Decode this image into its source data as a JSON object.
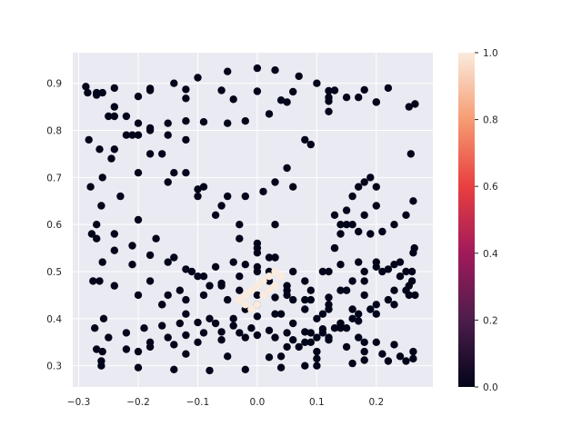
{
  "chart_data": {
    "type": "scatter",
    "title": "",
    "xlabel": "",
    "ylabel": "",
    "xlim": [
      -0.31,
      0.295
    ],
    "ylim": [
      0.255,
      0.965
    ],
    "xticks": [
      -0.3,
      -0.2,
      -0.1,
      0.0,
      0.1,
      0.2
    ],
    "xtick_labels": [
      "−0.3",
      "−0.2",
      "−0.1",
      "0.0",
      "0.1",
      "0.2"
    ],
    "yticks": [
      0.3,
      0.4,
      0.5,
      0.6,
      0.7,
      0.8,
      0.9
    ],
    "ytick_labels": [
      "0.3",
      "0.4",
      "0.5",
      "0.6",
      "0.7",
      "0.8",
      "0.9"
    ],
    "grid": true,
    "colorbar": {
      "range": [
        0.0,
        1.0
      ],
      "ticks": [
        0.0,
        0.2,
        0.4,
        0.6,
        0.8,
        1.0
      ],
      "tick_labels": [
        "0.0",
        "0.2",
        "0.4",
        "0.6",
        "0.8",
        "1.0"
      ],
      "colormap": "rocket",
      "colors": [
        "#03051a",
        "#4c1d4b",
        "#a11a5b",
        "#e83f3f",
        "#f69c73",
        "#faebdd"
      ]
    },
    "series": [
      {
        "color_value": 0.0,
        "x": [
          -0.288,
          -0.24,
          -0.18,
          -0.12,
          -0.06,
          0.0,
          0.06,
          0.12,
          0.18,
          0.22
        ],
        "y": [
          0.893,
          0.89,
          0.889,
          0.887,
          0.885,
          0.883,
          0.882,
          0.884,
          0.886,
          0.89
        ]
      },
      {
        "color_value": 0.0,
        "x": [
          -0.27,
          -0.2,
          -0.12,
          -0.04,
          0.04,
          0.12,
          0.2,
          0.265
        ],
        "y": [
          0.875,
          0.872,
          0.868,
          0.866,
          0.864,
          0.862,
          0.86,
          0.856
        ]
      },
      {
        "color_value": 0.0,
        "x": [
          -0.18,
          -0.14,
          -0.1,
          -0.05,
          0.0,
          0.03,
          0.07,
          0.1,
          0.13,
          0.17,
          0.2
        ],
        "y": [
          0.885,
          0.9,
          0.912,
          0.925,
          0.932,
          0.928,
          0.915,
          0.9,
          0.885,
          0.87,
          0.86
        ]
      },
      {
        "color_value": 0.0,
        "x": [
          -0.285,
          -0.283,
          -0.28,
          -0.278,
          -0.276,
          -0.273
        ],
        "y": [
          0.88,
          0.78,
          0.68,
          0.58,
          0.48,
          0.38
        ]
      },
      {
        "color_value": 0.0,
        "x": [
          -0.27,
          -0.265,
          -0.262,
          -0.26,
          -0.258,
          -0.262
        ],
        "y": [
          0.88,
          0.76,
          0.64,
          0.52,
          0.4,
          0.31
        ]
      },
      {
        "color_value": 0.0,
        "x": [
          -0.262,
          -0.2,
          -0.14,
          -0.08,
          -0.02,
          0.04,
          0.1,
          0.16,
          0.22,
          0.262
        ],
        "y": [
          0.3,
          0.296,
          0.292,
          0.29,
          0.292,
          0.296,
          0.3,
          0.305,
          0.31,
          0.315
        ]
      },
      {
        "color_value": 0.0,
        "x": [
          -0.27,
          -0.2,
          -0.12,
          -0.05,
          0.02,
          0.1,
          0.18,
          0.25
        ],
        "y": [
          0.335,
          0.33,
          0.325,
          0.32,
          0.318,
          0.315,
          0.312,
          0.31
        ]
      },
      {
        "color_value": 0.0,
        "x": [
          0.255,
          0.258,
          0.262,
          0.264,
          0.265,
          0.262
        ],
        "y": [
          0.85,
          0.75,
          0.65,
          0.55,
          0.45,
          0.33
        ]
      },
      {
        "color_value": 0.0,
        "x": [
          -0.26,
          -0.24,
          -0.22,
          -0.2,
          -0.18,
          -0.15,
          -0.12
        ],
        "y": [
          0.88,
          0.85,
          0.83,
          0.815,
          0.8,
          0.79,
          0.78
        ]
      },
      {
        "color_value": 0.0,
        "x": [
          -0.24,
          -0.21,
          -0.18,
          -0.15,
          -0.12,
          -0.09,
          -0.05,
          -0.02,
          0.02,
          0.05
        ],
        "y": [
          0.76,
          0.79,
          0.805,
          0.815,
          0.82,
          0.818,
          0.815,
          0.82,
          0.835,
          0.86
        ]
      },
      {
        "color_value": 0.0,
        "x": [
          -0.245,
          -0.2,
          -0.15,
          -0.1,
          -0.05,
          -0.02,
          0.01,
          0.03,
          0.05,
          0.08,
          0.12,
          0.15
        ],
        "y": [
          0.74,
          0.71,
          0.69,
          0.675,
          0.66,
          0.66,
          0.67,
          0.69,
          0.72,
          0.78,
          0.84,
          0.87
        ]
      },
      {
        "color_value": 0.0,
        "x": [
          -0.25,
          -0.22,
          -0.18,
          -0.14,
          -0.1,
          -0.07,
          -0.03,
          0.0,
          0.03,
          0.06,
          0.09,
          0.12
        ],
        "y": [
          0.83,
          0.79,
          0.75,
          0.71,
          0.66,
          0.62,
          0.57,
          0.54,
          0.6,
          0.68,
          0.77,
          0.87
        ]
      },
      {
        "color_value": 0.0,
        "x": [
          -0.24,
          -0.2,
          -0.16,
          -0.12,
          -0.09,
          -0.06,
          -0.03,
          0.0,
          0.02
        ],
        "y": [
          0.83,
          0.79,
          0.75,
          0.71,
          0.68,
          0.64,
          0.6,
          0.56,
          0.53
        ]
      },
      {
        "color_value": 0.0,
        "x": [
          -0.26,
          -0.23,
          -0.2,
          -0.17,
          -0.14,
          -0.11,
          -0.08,
          -0.05,
          -0.02
        ],
        "y": [
          0.7,
          0.66,
          0.61,
          0.57,
          0.53,
          0.5,
          0.47,
          0.44,
          0.42
        ]
      },
      {
        "color_value": 0.0,
        "x": [
          -0.27,
          -0.24,
          -0.21,
          -0.18,
          -0.15,
          -0.12,
          -0.09,
          -0.06,
          -0.03,
          0.0,
          0.03,
          0.06,
          0.09,
          0.12,
          0.15,
          0.18,
          0.21,
          0.24,
          0.262
        ],
        "y": [
          0.6,
          0.58,
          0.555,
          0.535,
          0.52,
          0.505,
          0.49,
          0.475,
          0.46,
          0.45,
          0.445,
          0.44,
          0.44,
          0.445,
          0.46,
          0.48,
          0.5,
          0.52,
          0.54
        ]
      },
      {
        "color_value": 0.0,
        "x": [
          -0.25,
          -0.22,
          -0.19,
          -0.16,
          -0.13,
          -0.1,
          -0.07,
          -0.04,
          -0.01,
          0.02,
          0.05,
          0.08,
          0.11,
          0.14,
          0.17,
          0.2,
          0.23,
          0.255
        ],
        "y": [
          0.36,
          0.37,
          0.38,
          0.385,
          0.39,
          0.392,
          0.39,
          0.385,
          0.38,
          0.375,
          0.37,
          0.372,
          0.378,
          0.385,
          0.395,
          0.41,
          0.43,
          0.45
        ]
      },
      {
        "color_value": 0.0,
        "x": [
          -0.27,
          -0.24,
          -0.21,
          -0.18,
          -0.15,
          -0.12,
          -0.09,
          -0.06,
          -0.03,
          0.0,
          0.03
        ],
        "y": [
          0.57,
          0.545,
          0.515,
          0.48,
          0.45,
          0.44,
          0.45,
          0.47,
          0.49,
          0.51,
          0.53
        ]
      },
      {
        "color_value": 0.0,
        "x": [
          -0.16,
          -0.13,
          -0.1,
          -0.07,
          -0.04,
          -0.02,
          0.0,
          0.02,
          0.05
        ],
        "y": [
          0.43,
          0.46,
          0.49,
          0.51,
          0.52,
          0.515,
          0.5,
          0.48,
          0.46
        ]
      },
      {
        "color_value": 0.0,
        "x": [
          -0.265,
          -0.24,
          -0.2,
          -0.16,
          -0.12,
          -0.08,
          -0.04,
          0.0,
          0.04,
          0.08
        ],
        "y": [
          0.48,
          0.47,
          0.45,
          0.43,
          0.41,
          0.4,
          0.4,
          0.405,
          0.41,
          0.42
        ]
      },
      {
        "color_value": 0.0,
        "x": [
          -0.26,
          -0.22,
          -0.18,
          -0.14,
          -0.1,
          -0.06,
          -0.02
        ],
        "y": [
          0.33,
          0.335,
          0.34,
          0.345,
          0.35,
          0.355,
          0.36
        ]
      },
      {
        "color_value": 0.0,
        "x": [
          0.05,
          0.08,
          0.11,
          0.14,
          0.17,
          0.2,
          0.23,
          0.25,
          0.26
        ],
        "y": [
          0.45,
          0.48,
          0.5,
          0.515,
          0.52,
          0.52,
          0.515,
          0.5,
          0.48
        ]
      },
      {
        "color_value": 0.0,
        "x": [
          0.1,
          0.12,
          0.14,
          0.16,
          0.18,
          0.2,
          0.22,
          0.24,
          0.255
        ],
        "y": [
          0.4,
          0.43,
          0.46,
          0.48,
          0.5,
          0.51,
          0.505,
          0.49,
          0.47
        ]
      },
      {
        "color_value": 0.0,
        "x": [
          0.04,
          0.07,
          0.1,
          0.13,
          0.16,
          0.19,
          0.22,
          0.25
        ],
        "y": [
          0.32,
          0.34,
          0.36,
          0.38,
          0.4,
          0.42,
          0.44,
          0.46
        ]
      },
      {
        "color_value": 0.0,
        "x": [
          0.0,
          0.03,
          0.06,
          0.09,
          0.12,
          0.15,
          0.18,
          0.21,
          0.24
        ],
        "y": [
          0.43,
          0.41,
          0.39,
          0.37,
          0.355,
          0.34,
          0.33,
          0.325,
          0.32
        ]
      },
      {
        "color_value": 0.0,
        "x": [
          0.02,
          0.05,
          0.08,
          0.11,
          0.14,
          0.17,
          0.2,
          0.23
        ],
        "y": [
          0.5,
          0.47,
          0.44,
          0.41,
          0.38,
          0.36,
          0.35,
          0.345
        ]
      },
      {
        "color_value": 0.0,
        "x": [
          0.0,
          0.03,
          0.06,
          0.09,
          0.12,
          0.15,
          0.18
        ],
        "y": [
          0.55,
          0.53,
          0.5,
          0.46,
          0.42,
          0.38,
          0.35
        ]
      },
      {
        "color_value": 0.0,
        "x": [
          0.12,
          0.13,
          0.14,
          0.15,
          0.16,
          0.17,
          0.18,
          0.19,
          0.2,
          0.2,
          0.18,
          0.16,
          0.14,
          0.13
        ],
        "y": [
          0.5,
          0.55,
          0.6,
          0.63,
          0.66,
          0.68,
          0.69,
          0.7,
          0.68,
          0.64,
          0.62,
          0.6,
          0.58,
          0.55
        ]
      },
      {
        "color_value": 0.0,
        "x": [
          0.13,
          0.15,
          0.17,
          0.19,
          0.21,
          0.23,
          0.25
        ],
        "y": [
          0.62,
          0.6,
          0.585,
          0.58,
          0.585,
          0.6,
          0.62
        ]
      },
      {
        "color_value": 0.0,
        "x": [
          0.05,
          0.08,
          0.11,
          0.14,
          0.17,
          0.2,
          0.23,
          0.26
        ],
        "y": [
          0.34,
          0.35,
          0.37,
          0.39,
          0.41,
          0.43,
          0.46,
          0.5
        ]
      },
      {
        "color_value": 0.0,
        "x": [
          -0.18,
          -0.15,
          -0.12,
          -0.09,
          -0.06,
          -0.03,
          0.0,
          0.03,
          0.06,
          0.09
        ],
        "y": [
          0.35,
          0.36,
          0.365,
          0.37,
          0.372,
          0.37,
          0.365,
          0.36,
          0.355,
          0.35
        ]
      },
      {
        "color_value": 0.0,
        "x": [
          0.08,
          0.1,
          0.12,
          0.14,
          0.16,
          0.18
        ],
        "y": [
          0.3,
          0.33,
          0.36,
          0.39,
          0.42,
          0.45
        ]
      },
      {
        "color_value": 1.0,
        "x": [
          -0.03,
          -0.02,
          -0.01,
          0.0,
          0.01,
          0.02,
          0.03,
          0.04,
          0.02,
          0.0,
          -0.01,
          -0.02,
          0.01,
          0.03
        ],
        "y": [
          0.44,
          0.45,
          0.46,
          0.47,
          0.48,
          0.49,
          0.5,
          0.49,
          0.46,
          0.43,
          0.42,
          0.43,
          0.45,
          0.47
        ]
      }
    ]
  }
}
